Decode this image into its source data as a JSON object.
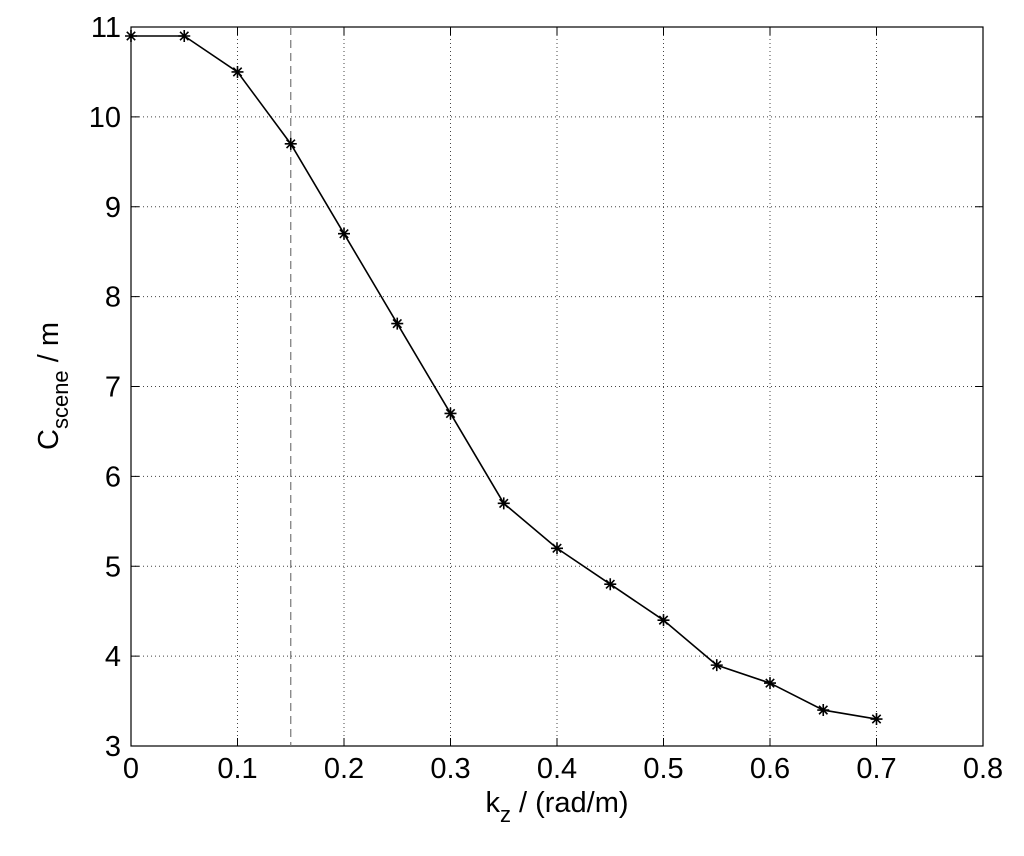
{
  "chart_data": {
    "type": "line",
    "xlabel": [
      "k",
      "z",
      " / (rad/m)"
    ],
    "ylabel": [
      "C",
      "scene",
      " / m"
    ],
    "x": [
      0,
      0.05,
      0.1,
      0.15,
      0.2,
      0.25,
      0.3,
      0.35,
      0.4,
      0.45,
      0.5,
      0.55,
      0.6,
      0.65,
      0.7
    ],
    "series": [
      {
        "color": "#000000",
        "marker": "asterisk",
        "values": [
          10.9,
          10.9,
          10.5,
          9.7,
          8.7,
          7.7,
          6.7,
          5.7,
          5.2,
          4.8,
          4.4,
          3.9,
          3.7,
          3.4,
          3.3
        ]
      }
    ],
    "xlim": [
      0,
      0.8
    ],
    "ylim": [
      3,
      11
    ],
    "xticks": [
      0,
      0.1,
      0.2,
      0.3,
      0.4,
      0.5,
      0.6,
      0.7,
      0.8
    ],
    "yticks": [
      3,
      4,
      5,
      6,
      7,
      8,
      9,
      10,
      11
    ],
    "grid": true,
    "vline": {
      "x": 0.15,
      "color": "#777777",
      "style": "dashed"
    }
  }
}
